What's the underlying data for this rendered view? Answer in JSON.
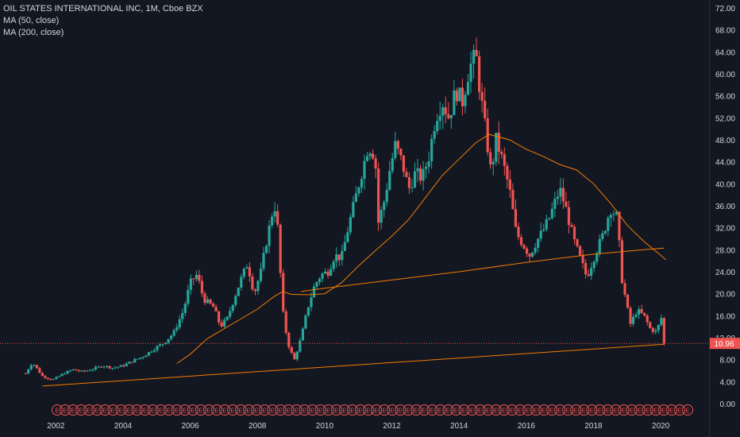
{
  "chart_data": {
    "type": "candlestick",
    "title": "OIL STATES INTERNATIONAL INC, 1M, Cboe BZX",
    "indicators": [
      "MA (50, close)",
      "MA (200, close)"
    ],
    "y_ticks": [
      "72.00",
      "68.00",
      "64.00",
      "60.00",
      "56.00",
      "52.00",
      "48.00",
      "44.00",
      "40.00",
      "36.00",
      "32.00",
      "28.00",
      "24.00",
      "20.00",
      "16.00",
      "12.00",
      "8.00",
      "4.00",
      "0.00"
    ],
    "y_range": [
      0,
      72
    ],
    "x_ticks": [
      {
        "label": "2002",
        "year": 2002
      },
      {
        "label": "2004",
        "year": 2004
      },
      {
        "label": "2006",
        "year": 2006
      },
      {
        "label": "2008",
        "year": 2008
      },
      {
        "label": "2010",
        "year": 2010
      },
      {
        "label": "2012",
        "year": 2012
      },
      {
        "label": "2014",
        "year": 2014
      },
      {
        "label": "2016",
        "year": 2016
      },
      {
        "label": "2018",
        "year": 2018
      },
      {
        "label": "2020",
        "year": 2020
      }
    ],
    "x_range_years": [
      2001.0,
      2020.8
    ],
    "last_price_label": "10.96",
    "last_price": 10.96,
    "price_path": [
      [
        2001.1,
        5.5
      ],
      [
        2001.3,
        7.5
      ],
      [
        2001.6,
        5.0
      ],
      [
        2001.9,
        4.3
      ],
      [
        2002.2,
        5.4
      ],
      [
        2002.5,
        6.2
      ],
      [
        2002.8,
        5.8
      ],
      [
        2003.1,
        6.3
      ],
      [
        2003.4,
        6.9
      ],
      [
        2003.7,
        6.5
      ],
      [
        2004.0,
        6.9
      ],
      [
        2004.3,
        7.8
      ],
      [
        2004.6,
        8.6
      ],
      [
        2004.9,
        9.9
      ],
      [
        2005.2,
        11.0
      ],
      [
        2005.5,
        12.8
      ],
      [
        2005.8,
        17.0
      ],
      [
        2006.0,
        22.0
      ],
      [
        2006.2,
        23.5
      ],
      [
        2006.4,
        19.0
      ],
      [
        2006.7,
        17.5
      ],
      [
        2006.9,
        14.0
      ],
      [
        2007.1,
        15.5
      ],
      [
        2007.3,
        19.0
      ],
      [
        2007.5,
        22.5
      ],
      [
        2007.7,
        25.5
      ],
      [
        2007.9,
        20.0
      ],
      [
        2008.1,
        24.0
      ],
      [
        2008.3,
        30.5
      ],
      [
        2008.5,
        36.5
      ],
      [
        2008.6,
        32.0
      ],
      [
        2008.75,
        17.0
      ],
      [
        2008.85,
        13.0
      ],
      [
        2008.95,
        10.0
      ],
      [
        2009.1,
        8.0
      ],
      [
        2009.3,
        12.0
      ],
      [
        2009.5,
        17.5
      ],
      [
        2009.7,
        21.5
      ],
      [
        2009.9,
        23.5
      ],
      [
        2010.1,
        24.0
      ],
      [
        2010.3,
        27.0
      ],
      [
        2010.5,
        26.5
      ],
      [
        2010.7,
        32.0
      ],
      [
        2010.9,
        37.0
      ],
      [
        2011.1,
        42.0
      ],
      [
        2011.3,
        47.0
      ],
      [
        2011.5,
        45.0
      ],
      [
        2011.6,
        33.0
      ],
      [
        2011.8,
        37.5
      ],
      [
        2011.9,
        41.5
      ],
      [
        2012.1,
        47.0
      ],
      [
        2012.3,
        44.0
      ],
      [
        2012.5,
        39.0
      ],
      [
        2012.7,
        42.0
      ],
      [
        2012.9,
        41.0
      ],
      [
        2013.1,
        45.0
      ],
      [
        2013.3,
        52.0
      ],
      [
        2013.5,
        55.0
      ],
      [
        2013.7,
        52.0
      ],
      [
        2013.9,
        57.0
      ],
      [
        2014.1,
        55.0
      ],
      [
        2014.3,
        61.0
      ],
      [
        2014.5,
        63.5
      ],
      [
        2014.6,
        58.0
      ],
      [
        2014.8,
        49.0
      ],
      [
        2014.95,
        42.0
      ],
      [
        2015.1,
        48.0
      ],
      [
        2015.3,
        44.0
      ],
      [
        2015.5,
        39.0
      ],
      [
        2015.7,
        31.0
      ],
      [
        2015.9,
        29.0
      ],
      [
        2016.1,
        27.0
      ],
      [
        2016.3,
        29.5
      ],
      [
        2016.5,
        31.5
      ],
      [
        2016.7,
        34.0
      ],
      [
        2016.9,
        37.5
      ],
      [
        2017.0,
        39.0
      ],
      [
        2017.2,
        35.0
      ],
      [
        2017.4,
        30.0
      ],
      [
        2017.6,
        26.5
      ],
      [
        2017.8,
        23.0
      ],
      [
        2017.95,
        25.5
      ],
      [
        2018.1,
        28.0
      ],
      [
        2018.3,
        31.0
      ],
      [
        2018.5,
        35.5
      ],
      [
        2018.7,
        34.0
      ],
      [
        2018.85,
        22.5
      ],
      [
        2019.0,
        17.5
      ],
      [
        2019.1,
        14.5
      ],
      [
        2019.3,
        17.0
      ],
      [
        2019.5,
        16.0
      ],
      [
        2019.7,
        13.5
      ],
      [
        2019.9,
        13.0
      ],
      [
        2020.0,
        16.5
      ],
      [
        2020.1,
        10.96
      ]
    ],
    "ma50": [
      [
        2005.6,
        7.3
      ],
      [
        2006.0,
        9.0
      ],
      [
        2006.5,
        11.8
      ],
      [
        2007.0,
        13.6
      ],
      [
        2007.5,
        15.4
      ],
      [
        2008.0,
        17.2
      ],
      [
        2008.5,
        19.5
      ],
      [
        2008.75,
        20.4
      ],
      [
        2009.0,
        19.9
      ],
      [
        2009.5,
        19.8
      ],
      [
        2010.0,
        20.0
      ],
      [
        2010.5,
        22.0
      ],
      [
        2011.0,
        25.0
      ],
      [
        2011.5,
        27.8
      ],
      [
        2012.0,
        30.5
      ],
      [
        2012.5,
        33.5
      ],
      [
        2013.0,
        37.5
      ],
      [
        2013.5,
        41.5
      ],
      [
        2014.0,
        44.5
      ],
      [
        2014.5,
        47.5
      ],
      [
        2014.9,
        49.0
      ],
      [
        2015.5,
        48.0
      ],
      [
        2016.0,
        46.3
      ],
      [
        2016.5,
        45.0
      ],
      [
        2017.0,
        43.5
      ],
      [
        2017.5,
        42.5
      ],
      [
        2018.0,
        40.0
      ],
      [
        2018.5,
        36.5
      ],
      [
        2019.0,
        32.5
      ],
      [
        2019.5,
        29.5
      ],
      [
        2020.0,
        27.0
      ],
      [
        2020.15,
        26.2
      ]
    ],
    "ma200": [
      [
        2009.3,
        20.4
      ],
      [
        2010.0,
        21.0
      ],
      [
        2012.0,
        22.5
      ],
      [
        2014.0,
        24.0
      ],
      [
        2016.0,
        25.7
      ],
      [
        2018.0,
        27.2
      ],
      [
        2019.5,
        28.0
      ],
      [
        2020.1,
        28.3
      ]
    ],
    "trendline": [
      [
        2001.6,
        3.2
      ],
      [
        2020.1,
        10.8
      ]
    ],
    "earnings_marker_label": "E",
    "earnings_marker_count": 80,
    "colors": {
      "background": "#131722",
      "up": "#26a69a",
      "down": "#ef5350",
      "ma": "#f57c00",
      "text": "#d1d4dc",
      "grid": "#1e222d"
    }
  }
}
